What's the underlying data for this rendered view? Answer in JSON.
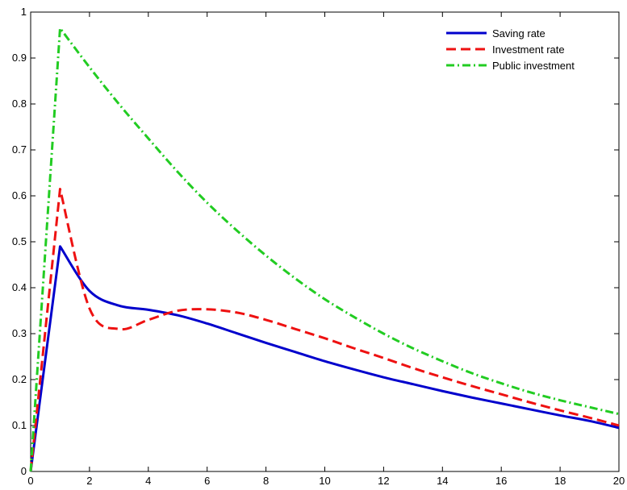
{
  "chart_data": {
    "type": "line",
    "title": "",
    "xlabel": "",
    "ylabel": "",
    "xlim": [
      0,
      20
    ],
    "ylim": [
      0,
      1
    ],
    "xticks": [
      0,
      2,
      4,
      6,
      8,
      10,
      12,
      14,
      16,
      18,
      20
    ],
    "yticks": [
      0,
      0.1,
      0.2,
      0.3,
      0.4,
      0.5,
      0.6,
      0.7,
      0.8,
      0.9,
      1
    ],
    "grid": false,
    "legend_position": "top-right",
    "series": [
      {
        "name": "Saving rate",
        "color": "#0000cc",
        "style": "solid",
        "x": [
          0,
          1,
          2,
          3,
          4,
          5,
          6,
          7,
          8,
          9,
          10,
          11,
          12,
          13,
          14,
          15,
          16,
          17,
          18,
          19,
          20
        ],
        "values": [
          0,
          0.49,
          0.393,
          0.361,
          0.352,
          0.34,
          0.322,
          0.301,
          0.28,
          0.26,
          0.24,
          0.222,
          0.205,
          0.19,
          0.175,
          0.161,
          0.148,
          0.135,
          0.122,
          0.11,
          0.095
        ]
      },
      {
        "name": "Investment rate",
        "color": "#ee1111",
        "style": "dashed",
        "x": [
          0,
          1,
          2,
          3,
          4,
          5,
          6,
          7,
          8,
          9,
          10,
          11,
          12,
          13,
          14,
          15,
          16,
          17,
          18,
          19,
          20
        ],
        "values": [
          0,
          0.615,
          0.355,
          0.31,
          0.33,
          0.35,
          0.353,
          0.346,
          0.33,
          0.31,
          0.29,
          0.268,
          0.247,
          0.225,
          0.205,
          0.186,
          0.168,
          0.15,
          0.133,
          0.117,
          0.1
        ]
      },
      {
        "name": "Public investment",
        "color": "#22cc22",
        "style": "dashdot",
        "x": [
          0,
          1,
          2,
          3,
          4,
          5,
          6,
          7,
          8,
          9,
          10,
          11,
          12,
          13,
          14,
          15,
          16,
          17,
          18,
          19,
          20
        ],
        "values": [
          0,
          0.965,
          0.88,
          0.8,
          0.725,
          0.652,
          0.585,
          0.525,
          0.47,
          0.42,
          0.375,
          0.336,
          0.3,
          0.268,
          0.24,
          0.214,
          0.192,
          0.172,
          0.155,
          0.14,
          0.125
        ]
      }
    ]
  }
}
